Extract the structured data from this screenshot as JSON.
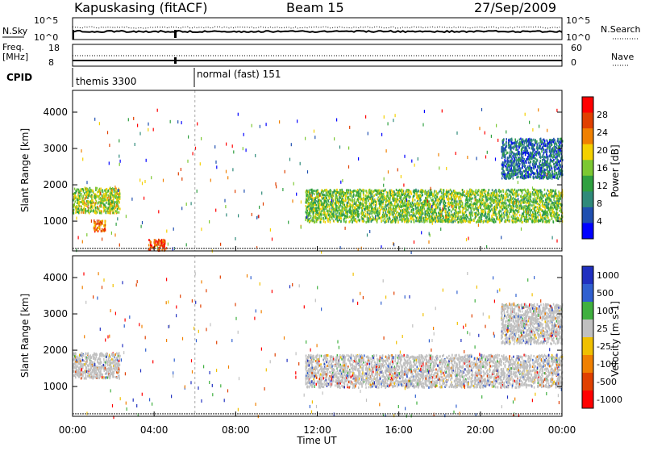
{
  "header": {
    "station": "Kapuskasing (fitACF)",
    "beam": "Beam 15",
    "date": "27/Sep/2009"
  },
  "top_panels": {
    "nsky_label": "N.Sky",
    "nsky_ticks": [
      "10^5",
      "10^0"
    ],
    "nsearch_label": "N.Search",
    "nsearch_ticks": [
      "10^5",
      "10^0"
    ],
    "freq_label_1": "Freq.",
    "freq_label_2": "[MHz]",
    "freq_ticks": [
      "18",
      "8"
    ],
    "nave_label": "Nave",
    "nave_ticks": [
      "60",
      "0"
    ],
    "cpid_label": "CPID",
    "cpid_segments": [
      {
        "label": "themis 3300",
        "start": "00:00",
        "end": "06:00"
      },
      {
        "label": "normal (fast) 151",
        "start": "06:00",
        "end": "24:00"
      }
    ]
  },
  "chart_data": [
    {
      "type": "heatmap",
      "name": "power",
      "ylabel": "Slant Range [km]",
      "yticks": [
        "1000",
        "2000",
        "3000",
        "4000"
      ],
      "ylim": [
        180,
        4600
      ],
      "xlim": [
        0,
        24
      ],
      "colorbar_label": "Power [dB]",
      "colorbar_ticks": [
        "4",
        "8",
        "12",
        "16",
        "20",
        "24",
        "28"
      ],
      "colorbar_range": [
        0,
        30
      ],
      "colors": [
        "#0000ff",
        "#1f4fb0",
        "#2f8a7a",
        "#2fa040",
        "#7cc832",
        "#f4d000",
        "#f08000",
        "#e04000",
        "#ff0000"
      ],
      "echo_regions": [
        {
          "t0": 0.0,
          "t1": 2.3,
          "r0": 1250,
          "r1": 1950,
          "power": 16
        },
        {
          "t0": 1.0,
          "t1": 1.6,
          "r0": 750,
          "r1": 1050,
          "power": 24
        },
        {
          "t0": 3.7,
          "t1": 4.6,
          "r0": 220,
          "r1": 520,
          "power": 26
        },
        {
          "t0": 11.4,
          "t1": 24.0,
          "r0": 1000,
          "r1": 1900,
          "power": 14
        },
        {
          "t0": 21.0,
          "t1": 24.0,
          "r0": 2200,
          "r1": 3300,
          "power": 6
        }
      ]
    },
    {
      "type": "heatmap",
      "name": "velocity",
      "ylabel": "Slant Range [km]",
      "yticks": [
        "1000",
        "2000",
        "3000",
        "4000"
      ],
      "ylim": [
        180,
        4600
      ],
      "xlim": [
        0,
        24
      ],
      "xlabel": "Time UT",
      "xticks": [
        "00:00",
        "04:00",
        "08:00",
        "12:00",
        "16:00",
        "20:00",
        "00:00"
      ],
      "colorbar_label": "Velocity [m s-1]",
      "colorbar_ticks": [
        "1000",
        "500",
        "100",
        "25",
        "-25",
        "-100",
        "-500",
        "-1000"
      ],
      "colors": [
        "#2030c0",
        "#3060d0",
        "#40b040",
        "#c0c0c0",
        "#f0c000",
        "#f08000",
        "#e04000",
        "#ff0000"
      ],
      "echo_regions": [
        {
          "t0": 0.0,
          "t1": 2.3,
          "r0": 1250,
          "r1": 1950,
          "velocity": 0
        },
        {
          "t0": 11.4,
          "t1": 24.0,
          "r0": 1000,
          "r1": 1900,
          "velocity": 0
        },
        {
          "t0": 21.0,
          "t1": 24.0,
          "r0": 2200,
          "r1": 3300,
          "velocity": 0
        }
      ]
    }
  ]
}
